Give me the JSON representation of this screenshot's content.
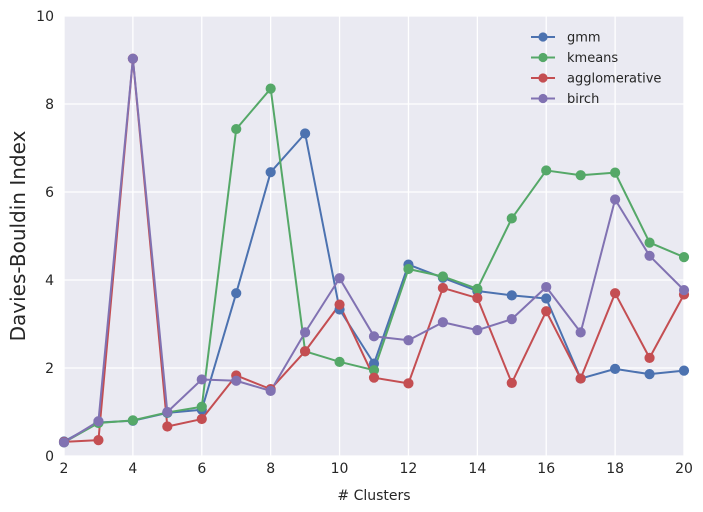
{
  "chart_data": {
    "type": "line",
    "xlabel": "# Clusters",
    "ylabel": "Davies-Bouldin Index",
    "xlim": [
      2,
      20
    ],
    "ylim": [
      0,
      10
    ],
    "xticks": [
      2,
      4,
      6,
      8,
      10,
      12,
      14,
      16,
      18,
      20
    ],
    "yticks": [
      0,
      2,
      4,
      6,
      8,
      10
    ],
    "grid": true,
    "legend_position": "top-right",
    "x": [
      2,
      3,
      4,
      5,
      6,
      7,
      8,
      9,
      10,
      11,
      12,
      13,
      14,
      15,
      16,
      17,
      18,
      19,
      20
    ],
    "series": [
      {
        "name": "gmm",
        "color": "#4c72b0",
        "values": [
          0.33,
          0.76,
          0.8,
          0.98,
          1.05,
          3.7,
          6.45,
          7.33,
          3.33,
          2.1,
          4.35,
          4.05,
          3.75,
          3.65,
          3.58,
          1.76,
          1.98,
          1.86,
          1.94
        ]
      },
      {
        "name": "kmeans",
        "color": "#55a868",
        "values": [
          0.31,
          0.75,
          0.81,
          0.99,
          1.12,
          7.43,
          8.35,
          2.38,
          2.14,
          1.95,
          4.25,
          4.08,
          3.8,
          5.4,
          6.49,
          6.38,
          6.44,
          4.85,
          4.52
        ]
      },
      {
        "name": "agglomerative",
        "color": "#c44e52",
        "values": [
          0.32,
          0.36,
          9.03,
          0.67,
          0.84,
          1.83,
          1.52,
          2.38,
          3.44,
          1.78,
          1.65,
          3.82,
          3.59,
          1.66,
          3.29,
          1.76,
          3.7,
          2.23,
          3.67
        ]
      },
      {
        "name": "birch",
        "color": "#8172b2",
        "values": [
          0.31,
          0.79,
          9.03,
          1.0,
          1.74,
          1.71,
          1.48,
          2.81,
          4.04,
          2.72,
          2.63,
          3.04,
          2.86,
          3.11,
          3.84,
          2.81,
          5.83,
          4.55,
          3.77
        ]
      }
    ]
  }
}
